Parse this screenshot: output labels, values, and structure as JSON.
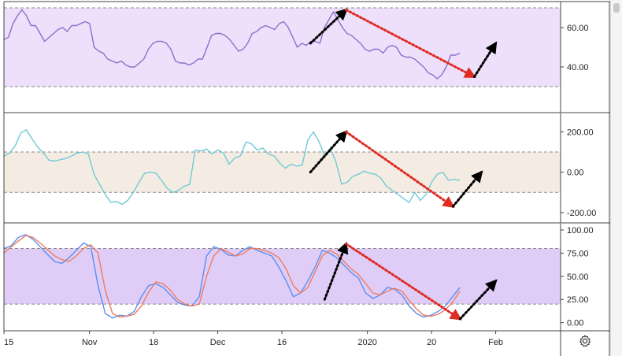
{
  "chart_data": [
    {
      "type": "line",
      "band": [
        30,
        70
      ],
      "ylim": [
        20,
        70
      ],
      "yticks": [
        "60.00",
        "40.00"
      ],
      "ytick_values": [
        60,
        40
      ],
      "colors": {
        "line": "#8b6fc9",
        "band": "#eedffa"
      },
      "series": [
        {
          "values": [
            54,
            55,
            62,
            66,
            69,
            66,
            61,
            61,
            57,
            53,
            55,
            57,
            59,
            60,
            58,
            61,
            61,
            62,
            63,
            62,
            50,
            48,
            47,
            44,
            43,
            42,
            43,
            41,
            40,
            40,
            42,
            44,
            49,
            52,
            53,
            53,
            52,
            49,
            43,
            42,
            42,
            41,
            42,
            44,
            44,
            50,
            56,
            57,
            57,
            56,
            54,
            51,
            48,
            49,
            52,
            57,
            58,
            60,
            61,
            60,
            59,
            62,
            63,
            60,
            55,
            50,
            52,
            51,
            53,
            53,
            52,
            60,
            64,
            68,
            64,
            60,
            57,
            56,
            54,
            52,
            49,
            48,
            49,
            49,
            47,
            50,
            51,
            50,
            46,
            45,
            45,
            44,
            42,
            40,
            37,
            36,
            34,
            36,
            40,
            46,
            46,
            47
          ]
        }
      ]
    },
    {
      "type": "line",
      "band": [
        -100,
        100
      ],
      "ylim": [
        -220,
        260
      ],
      "yticks": [
        "200.00",
        "0.00",
        "-200.00"
      ],
      "ytick_values": [
        200,
        0,
        -200
      ],
      "colors": {
        "line": "#6fcad6",
        "band": "#f4ece2"
      },
      "series": [
        {
          "values": [
            80,
            95,
            130,
            195,
            210,
            165,
            125,
            95,
            60,
            55,
            62,
            68,
            80,
            95,
            100,
            90,
            -10,
            -60,
            -110,
            -150,
            -145,
            -160,
            -140,
            -100,
            -50,
            -5,
            0,
            -5,
            -40,
            -80,
            -100,
            -90,
            -70,
            -60,
            110,
            105,
            115,
            90,
            110,
            95,
            40,
            70,
            80,
            150,
            140,
            110,
            120,
            90,
            80,
            45,
            20,
            40,
            30,
            35,
            160,
            200,
            150,
            80,
            120,
            50,
            -60,
            -50,
            -20,
            -10,
            5,
            -5,
            -10,
            -30,
            -70,
            -90,
            -110,
            -130,
            -150,
            -100,
            -140,
            -110,
            -50,
            -10,
            0,
            -40,
            -35,
            -40
          ]
        }
      ]
    },
    {
      "type": "line",
      "band": [
        20,
        80
      ],
      "ylim": [
        -2,
        100
      ],
      "yticks": [
        "100.00",
        "75.00",
        "50.00",
        "25.00",
        "0.00"
      ],
      "ytick_values": [
        100,
        75,
        50,
        25,
        0
      ],
      "colors": {
        "band": "#dfcdf8"
      },
      "series": [
        {
          "color": "#5b8ff0",
          "values": [
            80,
            83,
            92,
            95,
            90,
            82,
            74,
            66,
            64,
            70,
            78,
            86,
            82,
            40,
            10,
            5,
            8,
            7,
            12,
            28,
            40,
            42,
            38,
            30,
            22,
            19,
            18,
            28,
            72,
            82,
            79,
            73,
            72,
            78,
            82,
            78,
            75,
            72,
            60,
            45,
            28,
            32,
            45,
            60,
            78,
            75,
            70,
            62,
            54,
            48,
            32,
            26,
            30,
            38,
            36,
            30,
            18,
            10,
            6,
            8,
            12,
            18,
            28,
            38
          ]
        },
        {
          "color": "#ef7b5e",
          "values": [
            75,
            82,
            88,
            94,
            92,
            86,
            79,
            72,
            68,
            66,
            72,
            80,
            84,
            75,
            35,
            10,
            6,
            7,
            9,
            18,
            33,
            44,
            42,
            35,
            25,
            20,
            18,
            20,
            50,
            72,
            80,
            76,
            72,
            74,
            80,
            80,
            78,
            75,
            70,
            58,
            40,
            32,
            38,
            55,
            72,
            78,
            74,
            66,
            58,
            52,
            42,
            32,
            30,
            34,
            37,
            34,
            24,
            15,
            8,
            7,
            9,
            14,
            22,
            34
          ]
        }
      ]
    }
  ],
  "x_axis": {
    "labels": [
      "15",
      "Nov",
      "18",
      "Dec",
      "16",
      "2020",
      "20",
      "Feb"
    ],
    "label_index": [
      0,
      12,
      21,
      30,
      39,
      51,
      60,
      69
    ],
    "total_points": 78
  },
  "annotations": [
    {
      "panel": 0,
      "color": "black",
      "from": [
        43,
        52
      ],
      "to": [
        48,
        69
      ]
    },
    {
      "panel": 0,
      "color": "red",
      "from": [
        48,
        69
      ],
      "to": [
        66,
        35
      ]
    },
    {
      "panel": 0,
      "color": "black",
      "from": [
        66,
        35
      ],
      "to": [
        69,
        52
      ]
    },
    {
      "panel": 1,
      "color": "black",
      "from": [
        43,
        0
      ],
      "to": [
        48,
        200
      ]
    },
    {
      "panel": 1,
      "color": "red",
      "from": [
        48,
        200
      ],
      "to": [
        63,
        -170
      ]
    },
    {
      "panel": 1,
      "color": "black",
      "from": [
        63,
        -170
      ],
      "to": [
        67,
        0
      ]
    },
    {
      "panel": 2,
      "color": "black",
      "from": [
        45,
        25
      ],
      "to": [
        48,
        85
      ]
    },
    {
      "panel": 2,
      "color": "red",
      "from": [
        48,
        85
      ],
      "to": [
        64,
        4
      ]
    },
    {
      "panel": 2,
      "color": "black",
      "from": [
        64,
        4
      ],
      "to": [
        69,
        45
      ]
    }
  ],
  "icons": {
    "settings": "gear-icon"
  }
}
